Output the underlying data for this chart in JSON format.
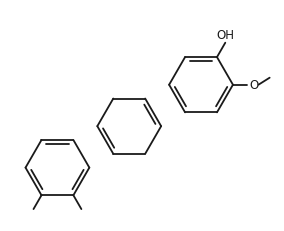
{
  "background_color": "#ffffff",
  "line_color": "#1a1a1a",
  "line_width": 1.3,
  "font_size": 8.5,
  "OH_label": "OH",
  "OMe_O_label": "O",
  "xlim": [
    -0.3,
    5.8
  ],
  "ylim": [
    -0.2,
    5.5
  ]
}
